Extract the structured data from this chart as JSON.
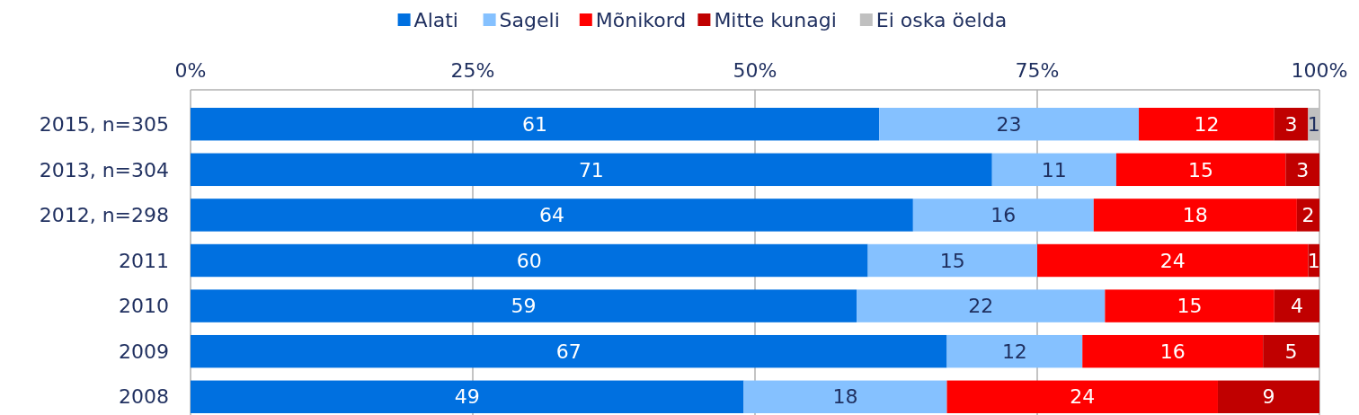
{
  "chart_data": {
    "type": "bar",
    "orientation": "horizontal",
    "stacked": true,
    "categories": [
      "2015, n=305",
      "2013, n=304",
      "2012, n=298",
      "2011",
      "2010",
      "2009",
      "2008"
    ],
    "series": [
      {
        "name": "Alati",
        "color": "#0070e0",
        "values": [
          61,
          71,
          64,
          60,
          59,
          67,
          49
        ]
      },
      {
        "name": "Sageli",
        "color": "#85c1ff",
        "values": [
          23,
          11,
          16,
          15,
          22,
          12,
          18
        ]
      },
      {
        "name": "Mõnikord",
        "color": "#ff0000",
        "values": [
          12,
          15,
          18,
          24,
          15,
          16,
          24
        ]
      },
      {
        "name": "Mitte kunagi",
        "color": "#c00000",
        "values": [
          3,
          3,
          2,
          1,
          4,
          5,
          9
        ]
      },
      {
        "name": "Ei oska öelda",
        "color": "#c0c0c0",
        "values": [
          1,
          null,
          null,
          null,
          null,
          null,
          null
        ]
      }
    ],
    "xlim": [
      0,
      100
    ],
    "xticks": [
      {
        "value": 0,
        "label": "0%"
      },
      {
        "value": 25,
        "label": "25%"
      },
      {
        "value": 50,
        "label": "50%"
      },
      {
        "value": 75,
        "label": "75%"
      },
      {
        "value": 100,
        "label": "100%"
      }
    ],
    "grid": "x",
    "legend": "top",
    "data_labels": true
  }
}
